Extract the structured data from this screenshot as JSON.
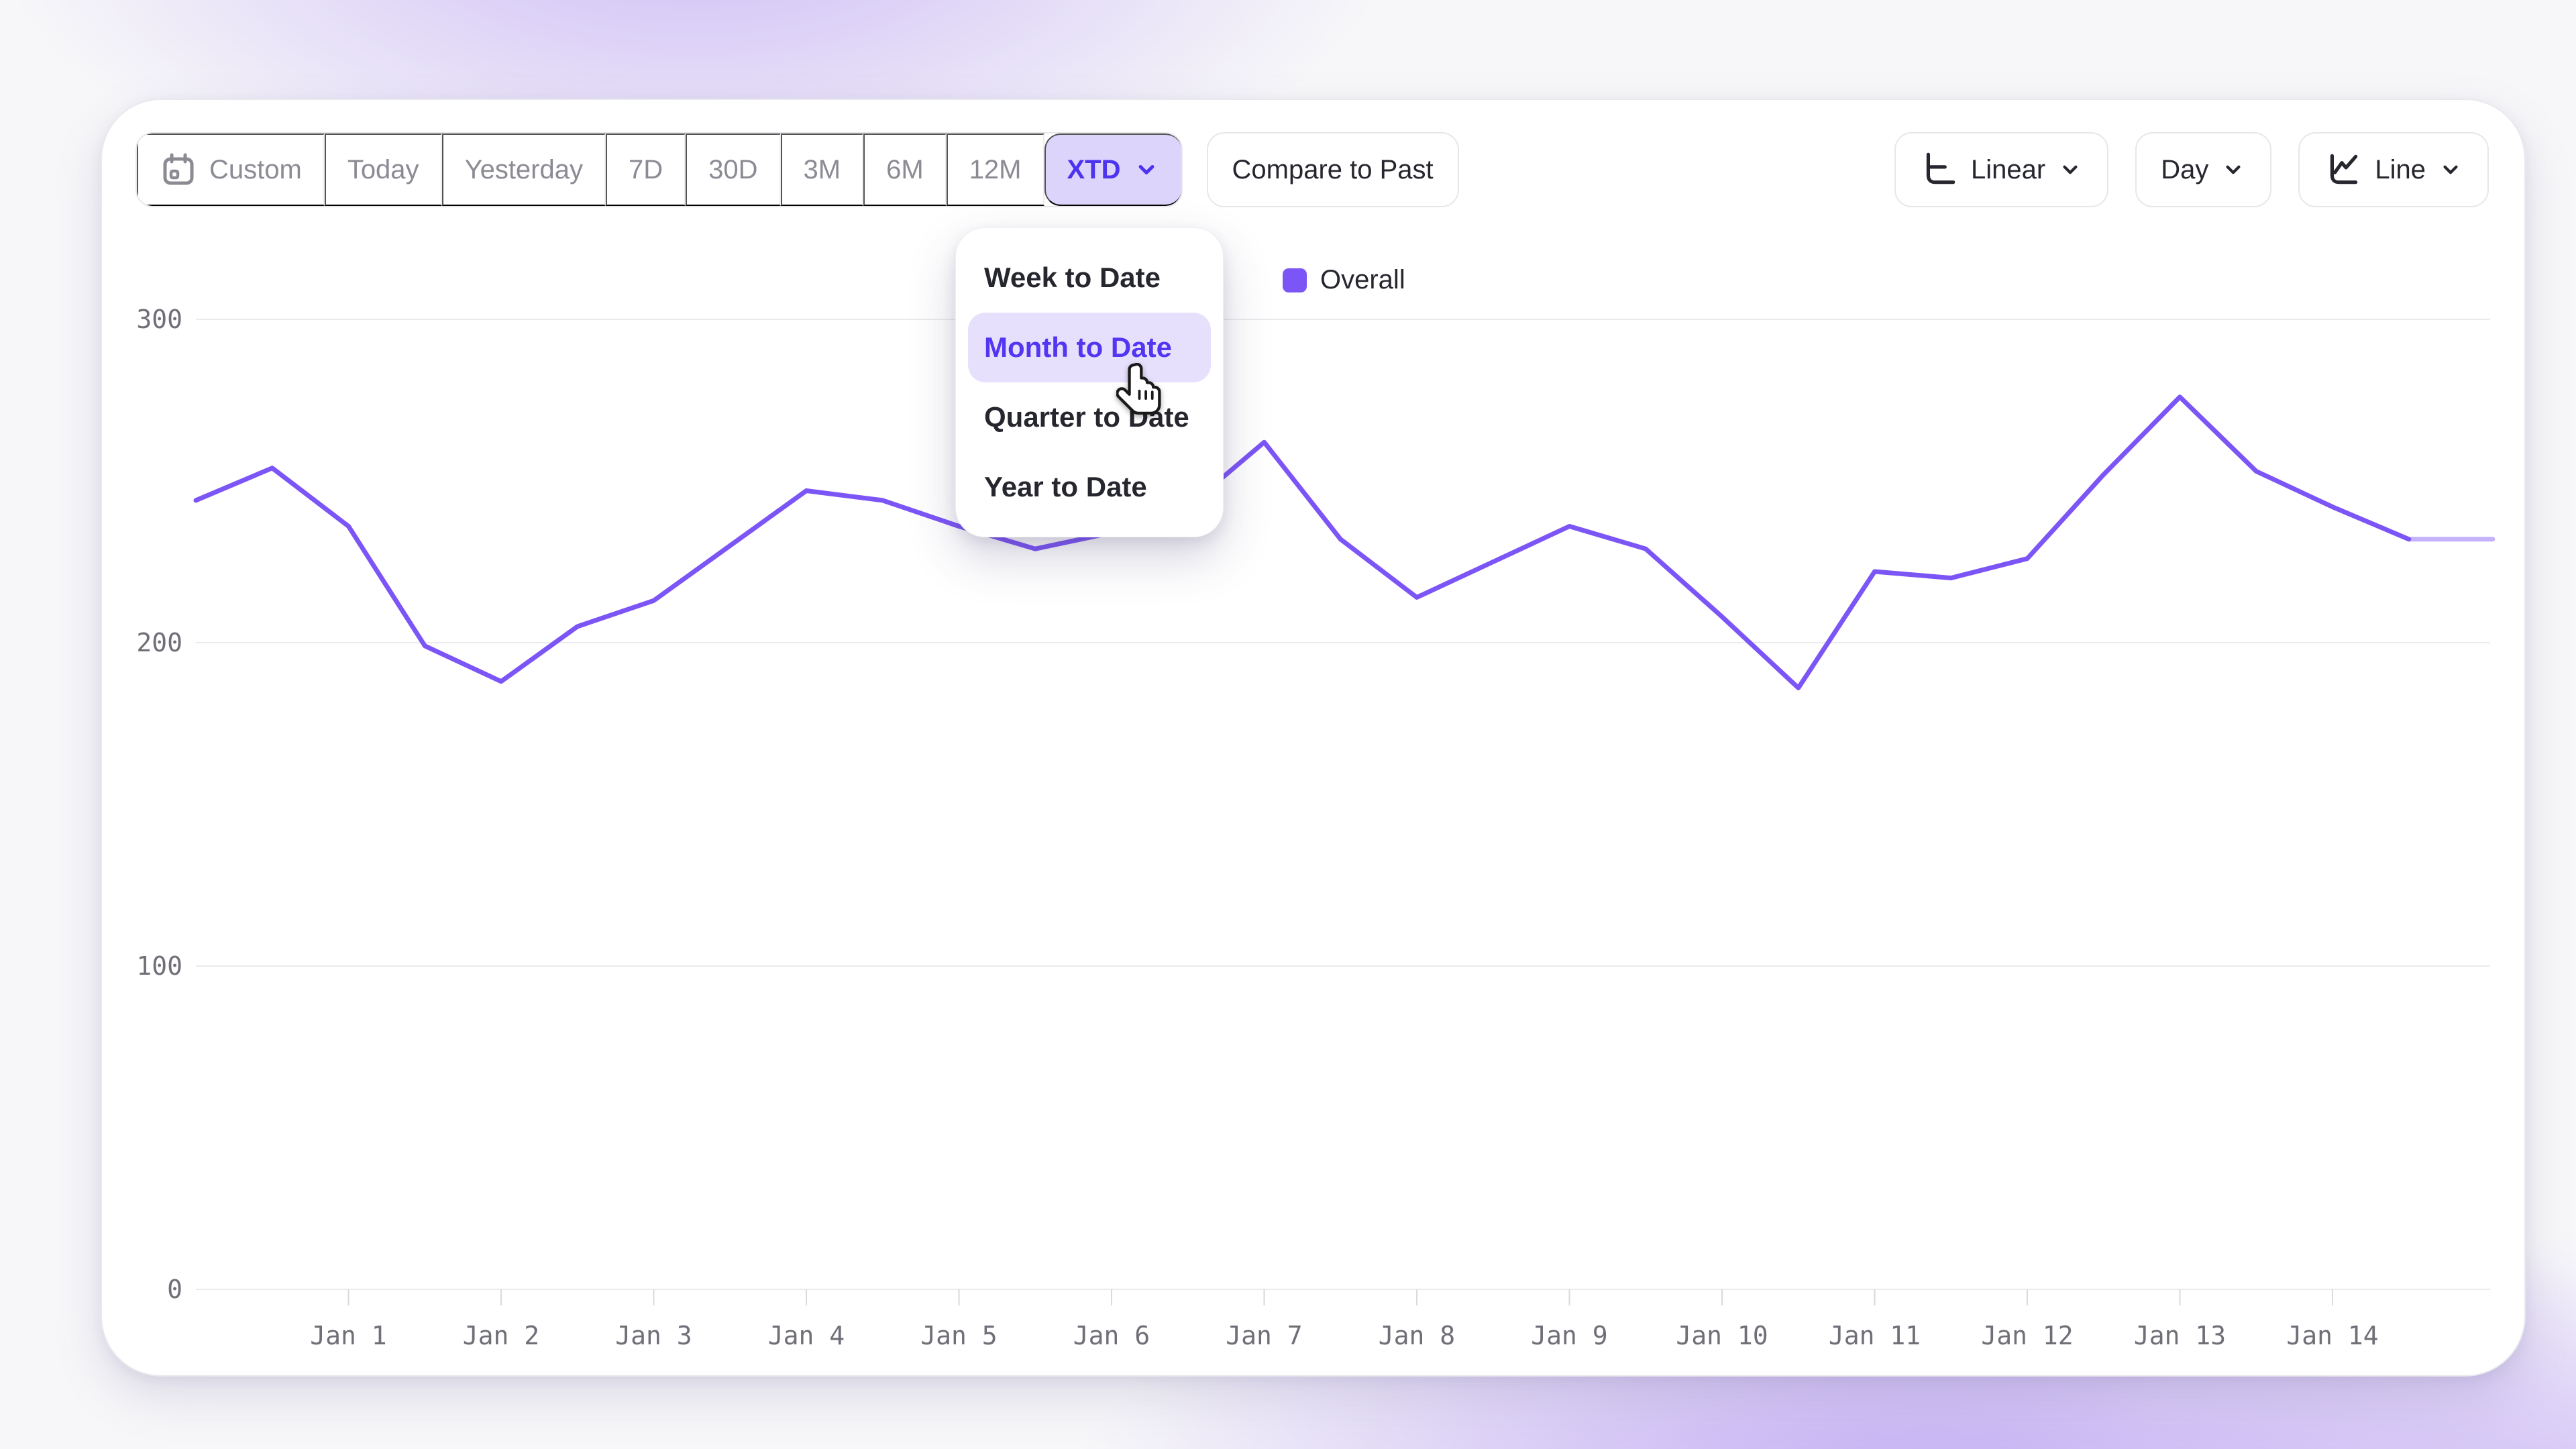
{
  "toolbar": {
    "ranges": [
      {
        "label": "Custom",
        "icon": "calendar-icon",
        "active": false
      },
      {
        "label": "Today",
        "active": false
      },
      {
        "label": "Yesterday",
        "active": false
      },
      {
        "label": "7D",
        "active": false
      },
      {
        "label": "30D",
        "active": false
      },
      {
        "label": "3M",
        "active": false
      },
      {
        "label": "6M",
        "active": false
      },
      {
        "label": "12M",
        "active": false
      },
      {
        "label": "XTD",
        "active": true,
        "has_chevron": true
      }
    ],
    "compare_label": "Compare to Past",
    "scale_button": {
      "label": "Linear",
      "icon": "linear-scale-icon",
      "has_chevron": true
    },
    "interval_button": {
      "label": "Day",
      "has_chevron": true
    },
    "chart_type_button": {
      "label": "Line",
      "icon": "line-chart-icon",
      "has_chevron": true
    }
  },
  "dropdown": {
    "items": [
      {
        "label": "Week to Date",
        "highlighted": false
      },
      {
        "label": "Month to Date",
        "highlighted": true
      },
      {
        "label": "Quarter to Date",
        "highlighted": false
      },
      {
        "label": "Year to Date",
        "highlighted": false
      }
    ]
  },
  "legend": {
    "label": "Overall",
    "color": "#7c55f7"
  },
  "chart_data": {
    "type": "line",
    "title": "",
    "xlabel": "",
    "ylabel": "",
    "ylim": [
      0,
      300
    ],
    "yticks": [
      0,
      100,
      200,
      300
    ],
    "grid": "horizontal",
    "legend_position": "top-center",
    "line_color": "#7c55f7",
    "categories": [
      "Jan 1",
      "Jan 2",
      "Jan 3",
      "Jan 4",
      "Jan 5",
      "Jan 6",
      "Jan 7",
      "Jan 8",
      "Jan 9",
      "Jan 10",
      "Jan 11",
      "Jan 12",
      "Jan 13",
      "Jan 14"
    ],
    "series": [
      {
        "name": "Overall",
        "note": "points sampled at half-day intervals; x=1 corresponds to Jan 1, final flat segment after x=14.5 is drawn faded (incomplete period)",
        "points": [
          {
            "x": 0.0,
            "y": 244
          },
          {
            "x": 0.5,
            "y": 254
          },
          {
            "x": 1.0,
            "y": 236
          },
          {
            "x": 1.5,
            "y": 199
          },
          {
            "x": 2.0,
            "y": 188
          },
          {
            "x": 2.5,
            "y": 205
          },
          {
            "x": 3.0,
            "y": 213
          },
          {
            "x": 3.5,
            "y": 230
          },
          {
            "x": 4.0,
            "y": 247
          },
          {
            "x": 4.5,
            "y": 244
          },
          {
            "x": 5.0,
            "y": 236
          },
          {
            "x": 5.5,
            "y": 229
          },
          {
            "x": 6.0,
            "y": 234
          },
          {
            "x": 6.5,
            "y": 242
          },
          {
            "x": 7.0,
            "y": 262
          },
          {
            "x": 7.5,
            "y": 232
          },
          {
            "x": 8.0,
            "y": 214
          },
          {
            "x": 8.5,
            "y": 225
          },
          {
            "x": 9.0,
            "y": 236
          },
          {
            "x": 9.5,
            "y": 229
          },
          {
            "x": 10.0,
            "y": 208
          },
          {
            "x": 10.5,
            "y": 186
          },
          {
            "x": 11.0,
            "y": 222
          },
          {
            "x": 11.5,
            "y": 220
          },
          {
            "x": 12.0,
            "y": 226
          },
          {
            "x": 12.5,
            "y": 252
          },
          {
            "x": 13.0,
            "y": 276
          },
          {
            "x": 13.5,
            "y": 253
          },
          {
            "x": 14.0,
            "y": 242
          },
          {
            "x": 14.5,
            "y": 232
          },
          {
            "x": 15.05,
            "y": 232
          }
        ],
        "faded_from_x": 14.5
      }
    ]
  }
}
